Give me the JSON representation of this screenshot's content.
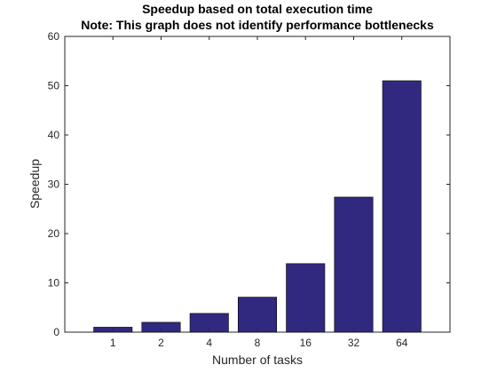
{
  "chart_data": {
    "type": "bar",
    "title": "Speedup based on total execution time",
    "subtitle": "Note: This graph does not identify performance bottlenecks",
    "xlabel": "Number of tasks",
    "ylabel": "Speedup",
    "categories": [
      "1",
      "2",
      "4",
      "8",
      "16",
      "32",
      "64"
    ],
    "values": [
      1.0,
      2.0,
      3.8,
      7.1,
      13.9,
      27.4,
      51.0
    ],
    "ylim": [
      0,
      60
    ],
    "yticks": [
      0,
      10,
      20,
      30,
      40,
      50,
      60
    ],
    "grid": false,
    "legend": "none",
    "bar_color": "#31297F",
    "bar_edge_color": "#000000"
  }
}
